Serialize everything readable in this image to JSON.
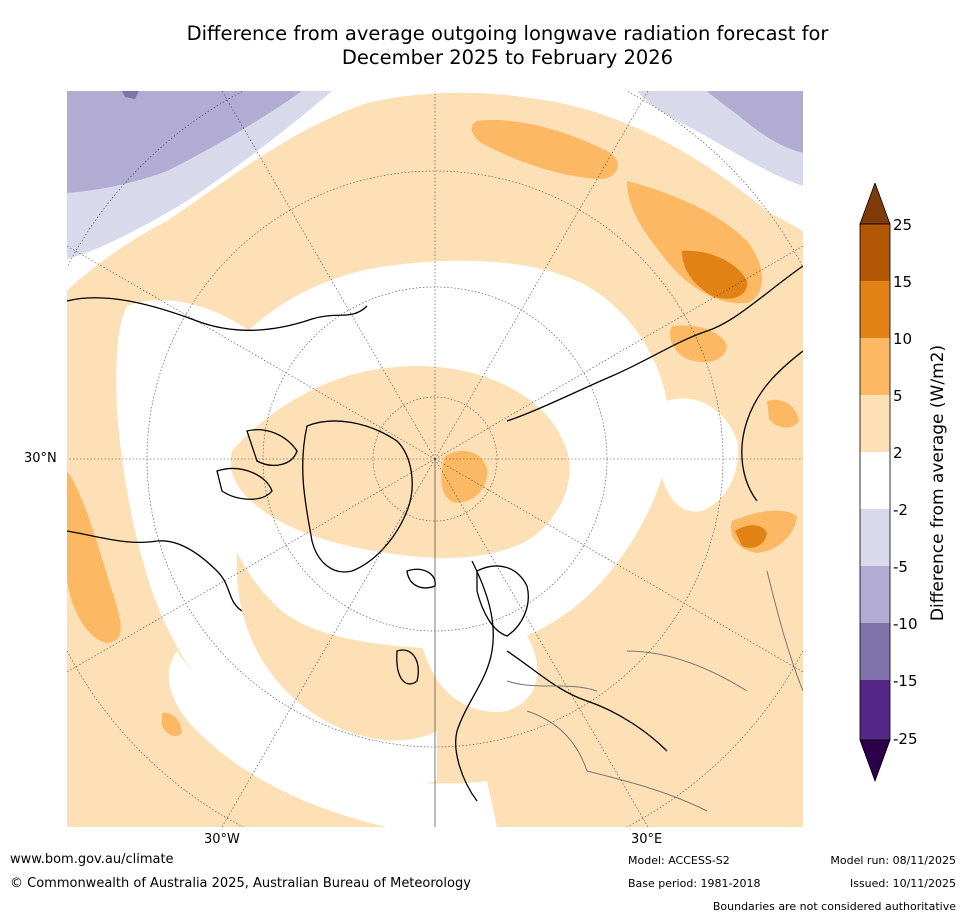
{
  "title": {
    "line1": "Difference from average outgoing longwave radiation forecast for",
    "line2": "December 2025 to February 2026"
  },
  "map": {
    "projection": "North polar stereographic",
    "lat_labels": [
      "30°N"
    ],
    "lon_labels": [
      "30°W",
      "30°E"
    ]
  },
  "colorbar": {
    "title": "Difference from average (W/m2)",
    "tick_labels": [
      "25",
      "15",
      "10",
      "5",
      "2",
      "-2",
      "-5",
      "-10",
      "-15",
      "-25"
    ],
    "colors": {
      "extend_high": "#7f3b08",
      "bin_15_25": "#b35806",
      "bin_10_15": "#e08214",
      "bin_5_10": "#fdb863",
      "bin_2_5": "#fee0b6",
      "bin_m2_2": "#ffffff",
      "bin_m5_m2": "#d8daeb",
      "bin_m10_m5": "#b2abd2",
      "bin_m15_m10": "#8073ac",
      "bin_m25_m15": "#542788",
      "extend_low": "#2d004b"
    }
  },
  "footer": {
    "website": "www.bom.gov.au/climate",
    "copyright": "© Commonwealth of Australia 2025, Australian Bureau of Meteorology",
    "model": "Model: ACCESS-S2",
    "base_period": "Base period: 1981-2018",
    "model_run": "Model run: 08/11/2025",
    "issued": "Issued: 10/11/2025",
    "disclaimer": "Boundaries are not considered authoritative"
  }
}
